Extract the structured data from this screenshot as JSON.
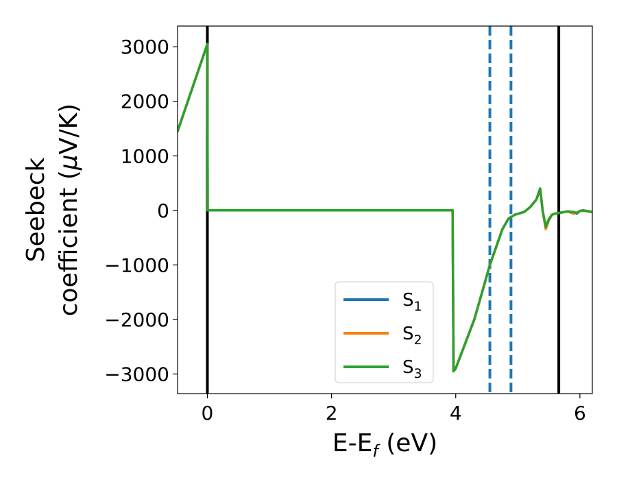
{
  "chart_data": {
    "type": "line",
    "xlabel": {
      "main": "E-E",
      "sub": "f",
      "rest": " (eV)"
    },
    "ylabel": {
      "line1": "Seebeck",
      "line2_pre": "coefficient  (",
      "mu": "μ",
      "line2_post": "V/K)"
    },
    "xlim": [
      -0.48,
      6.2
    ],
    "ylim": [
      -3360,
      3380
    ],
    "x_ticks": [
      0,
      2,
      4,
      6
    ],
    "x_tick_labels": [
      "0",
      "2",
      "4",
      "6"
    ],
    "y_ticks": [
      3000,
      2000,
      1000,
      0,
      -1000,
      -2000,
      -3000
    ],
    "y_tick_labels": [
      "3000",
      "2000",
      "1000",
      "0",
      "−1000",
      "−2000",
      "−3000"
    ],
    "vlines": [
      {
        "x": 0.0,
        "color": "#000000",
        "style": "solid"
      },
      {
        "x": 5.66,
        "color": "#000000",
        "style": "solid"
      },
      {
        "x": 4.55,
        "color": "#1f77b4",
        "style": "dashed"
      },
      {
        "x": 4.89,
        "color": "#1f77b4",
        "style": "dashed"
      }
    ],
    "legend_position": "lower-right",
    "series": [
      {
        "name": "S",
        "sub": "1",
        "color": "#1f77b4",
        "x": [
          -0.48,
          0.0,
          0.005,
          3.95,
          3.965,
          4.0,
          4.3,
          4.55,
          4.75,
          4.85,
          4.95,
          5.1,
          5.2,
          5.3,
          5.36,
          5.4,
          5.45,
          5.5,
          5.55,
          5.6,
          5.7,
          5.8,
          5.9,
          5.95,
          6.0,
          6.05,
          6.1,
          6.2
        ],
        "y": [
          1450,
          3050,
          0,
          0,
          -2950,
          -2900,
          -2000,
          -1000,
          -350,
          -150,
          -80,
          -30,
          60,
          200,
          400,
          0,
          -340,
          -180,
          -80,
          -60,
          -40,
          -20,
          -30,
          -60,
          -10,
          0,
          -10,
          -30
        ]
      },
      {
        "name": "S",
        "sub": "2",
        "color": "#ff7f0e",
        "x": [
          -0.48,
          0.0,
          0.005,
          3.95,
          3.965,
          4.0,
          4.3,
          4.55,
          4.75,
          4.85,
          4.95,
          5.1,
          5.2,
          5.3,
          5.36,
          5.4,
          5.45,
          5.5,
          5.55,
          5.6,
          5.7,
          5.8,
          5.9,
          5.95,
          6.0,
          6.05,
          6.1,
          6.2
        ],
        "y": [
          1450,
          3050,
          0,
          0,
          -2950,
          -2900,
          -2000,
          -1000,
          -350,
          -150,
          -80,
          -30,
          60,
          200,
          400,
          0,
          -340,
          -180,
          -80,
          -60,
          -40,
          -20,
          -60,
          -40,
          -10,
          0,
          -10,
          -30
        ]
      },
      {
        "name": "S",
        "sub": "3",
        "color": "#2ca02c",
        "x": [
          -0.48,
          0.0,
          0.005,
          3.95,
          3.965,
          4.0,
          4.3,
          4.55,
          4.75,
          4.85,
          4.95,
          5.1,
          5.2,
          5.3,
          5.36,
          5.4,
          5.45,
          5.5,
          5.55,
          5.6,
          5.7,
          5.8,
          5.9,
          5.95,
          6.0,
          6.05,
          6.1,
          6.2
        ],
        "y": [
          1450,
          3050,
          0,
          0,
          -2950,
          -2900,
          -2000,
          -1000,
          -350,
          -150,
          -80,
          -30,
          60,
          200,
          400,
          0,
          -300,
          -160,
          -80,
          -60,
          -40,
          -20,
          -30,
          -50,
          -10,
          0,
          -10,
          -30
        ]
      }
    ]
  }
}
